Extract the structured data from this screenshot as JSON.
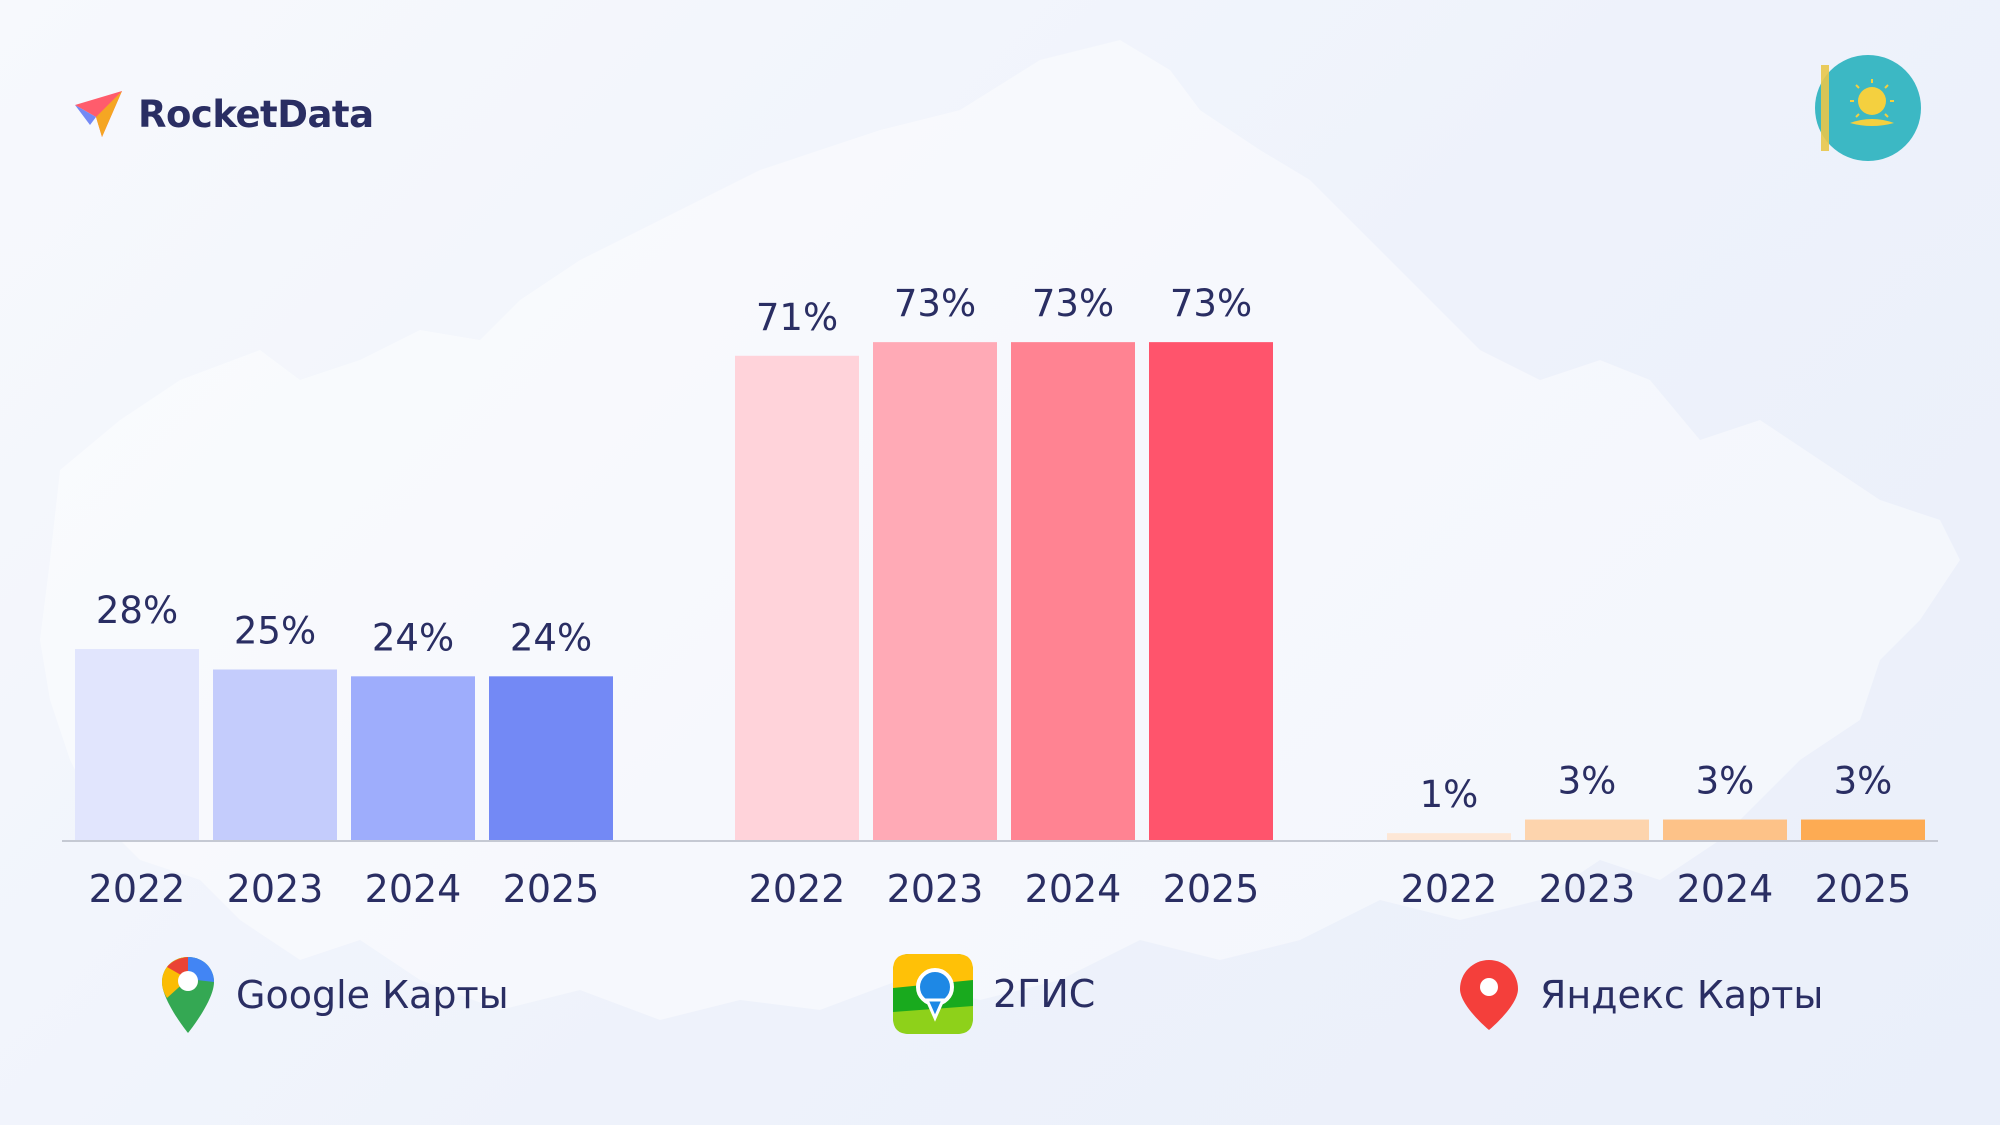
{
  "brand": {
    "name": "RocketData"
  },
  "colors": {
    "google": [
      "#e1e5fd",
      "#c4ccfc",
      "#9eadfc",
      "#7389f5"
    ],
    "2gis": [
      "#ffd3da",
      "#ffaab6",
      "#ff8392",
      "#ff546c"
    ],
    "yandex": [
      "#fde7d6",
      "#fdd4ad",
      "#fdc288",
      "#fdab53"
    ],
    "text": "#2a2e63",
    "baseline": "#c5c9d3"
  },
  "chart_data": {
    "type": "bar",
    "ylim": [
      0,
      80
    ],
    "groups": [
      {
        "name": "Google Карты",
        "icon": "google-maps-icon",
        "categories": [
          "2022",
          "2023",
          "2024",
          "2025"
        ],
        "values": [
          28,
          25,
          24,
          24
        ],
        "labels": [
          "28%",
          "25%",
          "24%",
          "24%"
        ]
      },
      {
        "name": "2ГИС",
        "icon": "2gis-icon",
        "categories": [
          "2022",
          "2023",
          "2024",
          "2025"
        ],
        "values": [
          71,
          73,
          73,
          73
        ],
        "labels": [
          "71%",
          "73%",
          "73%",
          "73%"
        ]
      },
      {
        "name": "Яндекс Карты",
        "icon": "yandex-maps-icon",
        "categories": [
          "2022",
          "2023",
          "2024",
          "2025"
        ],
        "values": [
          1,
          3,
          3,
          3
        ],
        "labels": [
          "1%",
          "3%",
          "3%",
          "3%"
        ]
      }
    ]
  }
}
